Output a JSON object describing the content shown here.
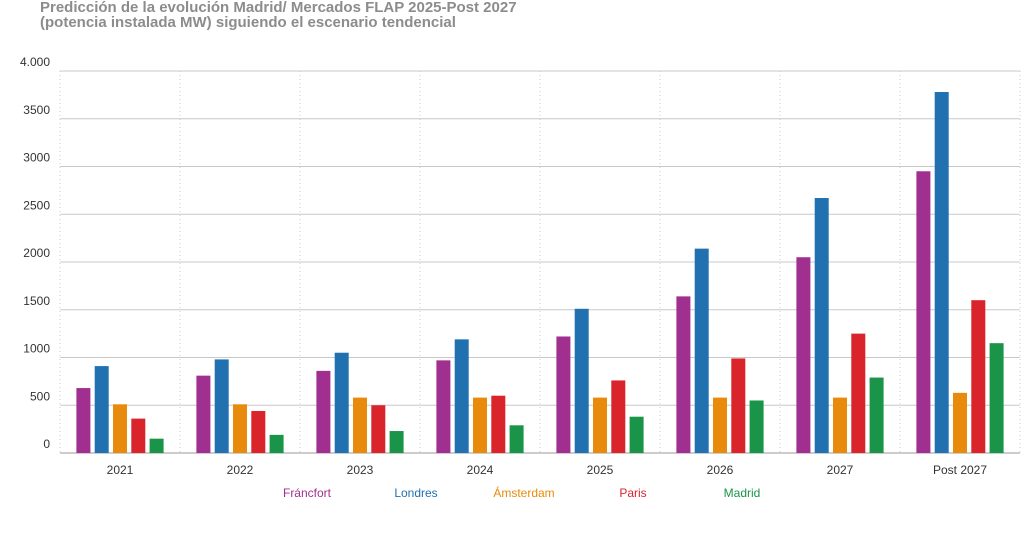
{
  "chart_data": {
    "type": "bar",
    "title": "Predicción de la evolución Madrid/ Mercados FLAP 2025-Post 2027",
    "subtitle": "(potencia instalada MW) siguiendo el escenario tendencial",
    "categories": [
      "2021",
      "2022",
      "2023",
      "2024",
      "2025",
      "2026",
      "2027",
      "Post 2027"
    ],
    "ylim": [
      0,
      4000
    ],
    "y_ticks": [
      {
        "value": 0,
        "label": "0"
      },
      {
        "value": 500,
        "label": "500"
      },
      {
        "value": 1000,
        "label": "1000"
      },
      {
        "value": 1500,
        "label": "1500"
      },
      {
        "value": 2000,
        "label": "2000"
      },
      {
        "value": 2500,
        "label": "2500"
      },
      {
        "value": 3000,
        "label": "3000"
      },
      {
        "value": 3500,
        "label": "3500"
      },
      {
        "value": 4000,
        "label": "4.000"
      }
    ],
    "grid": true,
    "legend_position": "bottom",
    "series": [
      {
        "name": "Fráncfort",
        "color": "#a12f8f",
        "values": [
          680,
          810,
          860,
          970,
          1220,
          1640,
          2050,
          2950
        ]
      },
      {
        "name": "Londres",
        "color": "#2171b0",
        "values": [
          910,
          980,
          1050,
          1190,
          1510,
          2140,
          2670,
          3780
        ]
      },
      {
        "name": "Ámsterdam",
        "color": "#e88a0c",
        "values": [
          510,
          510,
          580,
          580,
          580,
          580,
          580,
          630
        ]
      },
      {
        "name": "Paris",
        "color": "#d9242b",
        "values": [
          360,
          440,
          500,
          600,
          760,
          990,
          1250,
          1600
        ]
      },
      {
        "name": "Madrid",
        "color": "#1a9448",
        "values": [
          150,
          190,
          230,
          290,
          380,
          550,
          790,
          1150
        ]
      }
    ]
  }
}
